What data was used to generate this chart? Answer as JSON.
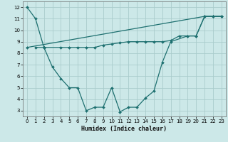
{
  "xlabel": "Humidex (Indice chaleur)",
  "background_color": "#cce8e8",
  "grid_color": "#aacccc",
  "line_color": "#1e7070",
  "xlim": [
    -0.5,
    23.5
  ],
  "ylim": [
    2.5,
    12.5
  ],
  "yticks": [
    3,
    4,
    5,
    6,
    7,
    8,
    9,
    10,
    11,
    12
  ],
  "xticks": [
    0,
    1,
    2,
    3,
    4,
    5,
    6,
    7,
    8,
    9,
    10,
    11,
    12,
    13,
    14,
    15,
    16,
    17,
    18,
    19,
    20,
    21,
    22,
    23
  ],
  "lines": [
    {
      "x": [
        0,
        1,
        2
      ],
      "y": [
        12,
        11,
        8.5
      ]
    },
    {
      "x": [
        2,
        3,
        4,
        5,
        6,
        7,
        8,
        9,
        10,
        11,
        12,
        13,
        14,
        15,
        16,
        17,
        19,
        20,
        21,
        22,
        23
      ],
      "y": [
        8.5,
        6.8,
        5.8,
        5.0,
        5.0,
        3.0,
        3.3,
        3.3,
        5.0,
        2.9,
        3.3,
        3.3,
        4.1,
        4.7,
        7.2,
        9.0,
        9.5,
        9.5,
        11.2,
        11.2,
        11.2
      ]
    },
    {
      "x": [
        1,
        2,
        4,
        5,
        6,
        7,
        8,
        9,
        10,
        11,
        12,
        13,
        14,
        15,
        16,
        17,
        18,
        19,
        20,
        21,
        22,
        23
      ],
      "y": [
        8.5,
        8.5,
        8.5,
        8.5,
        8.5,
        8.5,
        8.5,
        8.7,
        8.8,
        8.9,
        9.0,
        9.0,
        9.0,
        9.0,
        9.0,
        9.1,
        9.5,
        9.5,
        9.5,
        11.2,
        11.2,
        11.2
      ]
    },
    {
      "comment": "diagonal line from x=0,8.5 to x=22,11.2",
      "x": [
        0,
        21,
        22,
        23
      ],
      "y": [
        8.5,
        11.2,
        11.2,
        11.2
      ]
    }
  ]
}
